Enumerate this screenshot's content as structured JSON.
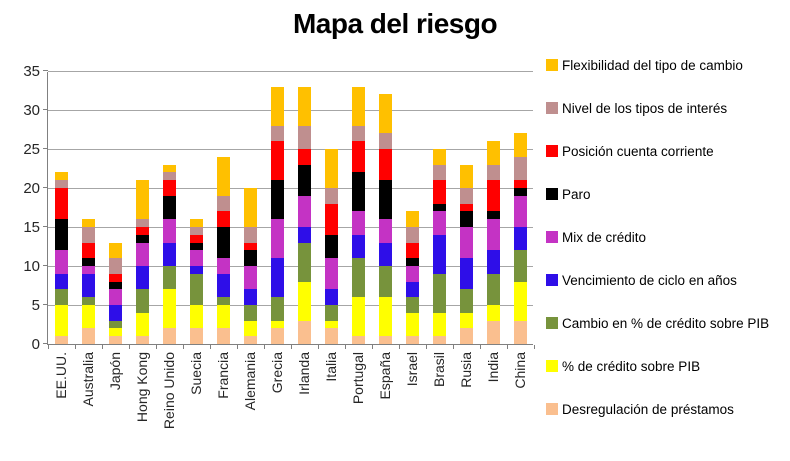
{
  "title": "Mapa del riesgo",
  "colors": {
    "background": "#ffffff",
    "axis_line": "#808080",
    "gridline": "#a6a6a6",
    "tick_text": "#262626",
    "title_text": "#000000"
  },
  "chart_data": {
    "type": "bar",
    "stacked": true,
    "title": "Mapa del riesgo",
    "xlabel": "",
    "ylabel": "",
    "ylim": [
      0,
      35
    ],
    "yticks": [
      0,
      5,
      10,
      15,
      20,
      25,
      30,
      35
    ],
    "grid": true,
    "legend_position": "right",
    "legend_order": "top item corresponds to topmost stacked series",
    "categories": [
      "EE.UU.",
      "Australia",
      "Japón",
      "Hong Kong",
      "Reino Unido",
      "Suecia",
      "Francia",
      "Alemania",
      "Grecia",
      "Irlanda",
      "Italia",
      "Portugal",
      "España",
      "Israel",
      "Brasil",
      "Rusia",
      "India",
      "China"
    ],
    "totals": [
      22,
      16,
      13,
      21,
      23,
      16,
      24,
      20,
      33,
      33,
      25,
      33,
      32,
      17,
      25,
      23,
      26,
      27
    ],
    "series": [
      {
        "name": "Desregulación de préstamos",
        "color": "#FABF8F",
        "values": [
          1,
          2,
          1,
          1,
          2,
          2,
          2,
          1,
          2,
          3,
          2,
          1,
          1,
          1,
          1,
          2,
          3,
          3
        ]
      },
      {
        "name": "% de crédito sobre PIB",
        "color": "#FFFF00",
        "values": [
          4,
          3,
          1,
          3,
          5,
          3,
          3,
          2,
          1,
          5,
          1,
          5,
          5,
          3,
          3,
          2,
          2,
          5
        ]
      },
      {
        "name": "Cambio en % de crédito sobre PIB",
        "color": "#77933C",
        "values": [
          2,
          1,
          1,
          3,
          3,
          4,
          1,
          2,
          3,
          5,
          2,
          5,
          4,
          2,
          5,
          3,
          4,
          4
        ]
      },
      {
        "name": "Vencimiento de ciclo en años",
        "color": "#2E0EE8",
        "values": [
          2,
          3,
          2,
          3,
          3,
          1,
          3,
          2,
          5,
          2,
          2,
          3,
          3,
          2,
          5,
          4,
          3,
          3
        ]
      },
      {
        "name": "Mix de crédito",
        "color": "#C433C4",
        "values": [
          3,
          1,
          2,
          3,
          3,
          2,
          2,
          3,
          5,
          4,
          4,
          3,
          3,
          2,
          3,
          4,
          4,
          4
        ]
      },
      {
        "name": "Paro",
        "color": "#000000",
        "values": [
          4,
          1,
          1,
          1,
          3,
          1,
          4,
          2,
          5,
          4,
          3,
          5,
          5,
          1,
          1,
          2,
          1,
          1
        ]
      },
      {
        "name": "Posición cuenta corriente",
        "color": "#FF0000",
        "values": [
          4,
          2,
          1,
          1,
          2,
          1,
          2,
          1,
          5,
          2,
          4,
          4,
          4,
          2,
          3,
          1,
          4,
          1
        ]
      },
      {
        "name": "Nivel de los tipos de interés",
        "color": "#BF8F8F",
        "values": [
          1,
          2,
          2,
          1,
          1,
          1,
          2,
          2,
          2,
          3,
          2,
          2,
          2,
          2,
          2,
          2,
          2,
          3
        ]
      },
      {
        "name": "Flexibilidad del tipo de cambio",
        "color": "#FFC000",
        "values": [
          1,
          1,
          2,
          5,
          1,
          1,
          5,
          5,
          5,
          5,
          5,
          5,
          5,
          2,
          2,
          3,
          3,
          3
        ]
      }
    ]
  }
}
